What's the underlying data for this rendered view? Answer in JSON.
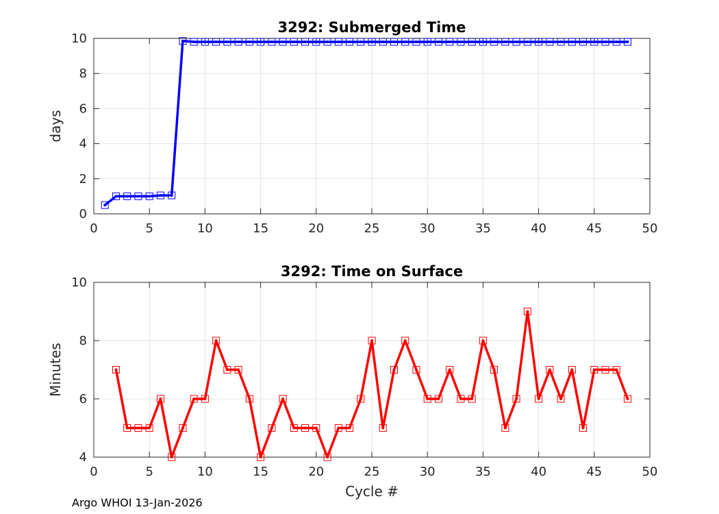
{
  "chart_data": [
    {
      "type": "line",
      "title": "3292: Submerged Time",
      "xlabel": "",
      "ylabel": "days",
      "xlim": [
        0,
        50
      ],
      "ylim": [
        0,
        10
      ],
      "xticks": [
        0,
        5,
        10,
        15,
        20,
        25,
        30,
        35,
        40,
        45,
        50
      ],
      "yticks": [
        0,
        2,
        4,
        6,
        8,
        10
      ],
      "grid": true,
      "marker": "square",
      "color": "#0000ff",
      "x": [
        1,
        2,
        3,
        4,
        5,
        6,
        7,
        8,
        9,
        10,
        11,
        12,
        13,
        14,
        15,
        16,
        17,
        18,
        19,
        20,
        21,
        22,
        23,
        24,
        25,
        26,
        27,
        28,
        29,
        30,
        31,
        32,
        33,
        34,
        35,
        36,
        37,
        38,
        39,
        40,
        41,
        42,
        43,
        44,
        45,
        46,
        47,
        48
      ],
      "y": [
        0.5,
        1.0,
        1.0,
        1.0,
        1.0,
        1.05,
        1.05,
        9.85,
        9.8,
        9.8,
        9.8,
        9.8,
        9.8,
        9.8,
        9.8,
        9.8,
        9.8,
        9.8,
        9.8,
        9.8,
        9.8,
        9.8,
        9.8,
        9.8,
        9.8,
        9.8,
        9.8,
        9.8,
        9.8,
        9.8,
        9.8,
        9.8,
        9.8,
        9.8,
        9.8,
        9.8,
        9.8,
        9.8,
        9.8,
        9.8,
        9.8,
        9.8,
        9.8,
        9.8,
        9.8,
        9.8,
        9.8,
        9.8
      ]
    },
    {
      "type": "line",
      "title": "3292: Time on Surface",
      "xlabel": "Cycle #",
      "ylabel": "Minutes",
      "xlim": [
        0,
        50
      ],
      "ylim": [
        4,
        10
      ],
      "xticks": [
        0,
        5,
        10,
        15,
        20,
        25,
        30,
        35,
        40,
        45,
        50
      ],
      "yticks": [
        4,
        6,
        8,
        10
      ],
      "grid": true,
      "marker": "square",
      "color": "#ff0000",
      "x": [
        2,
        3,
        4,
        5,
        6,
        7,
        8,
        9,
        10,
        11,
        12,
        13,
        14,
        15,
        16,
        17,
        18,
        19,
        20,
        21,
        22,
        23,
        24,
        25,
        26,
        27,
        28,
        29,
        30,
        31,
        32,
        33,
        34,
        35,
        36,
        37,
        38,
        39,
        40,
        41,
        42,
        43,
        44,
        45,
        46,
        47,
        48
      ],
      "y": [
        7,
        5,
        5,
        5,
        6,
        4,
        5,
        6,
        6,
        8,
        7,
        7,
        6,
        4,
        5,
        6,
        5,
        5,
        5,
        4,
        5,
        5,
        6,
        8,
        5,
        7,
        8,
        7,
        6,
        6,
        7,
        6,
        6,
        8,
        7,
        5,
        6,
        9,
        6,
        7,
        6,
        7,
        5,
        7,
        7,
        7,
        6
      ]
    }
  ],
  "footer": "Argo WHOI 13-Jan-2026"
}
